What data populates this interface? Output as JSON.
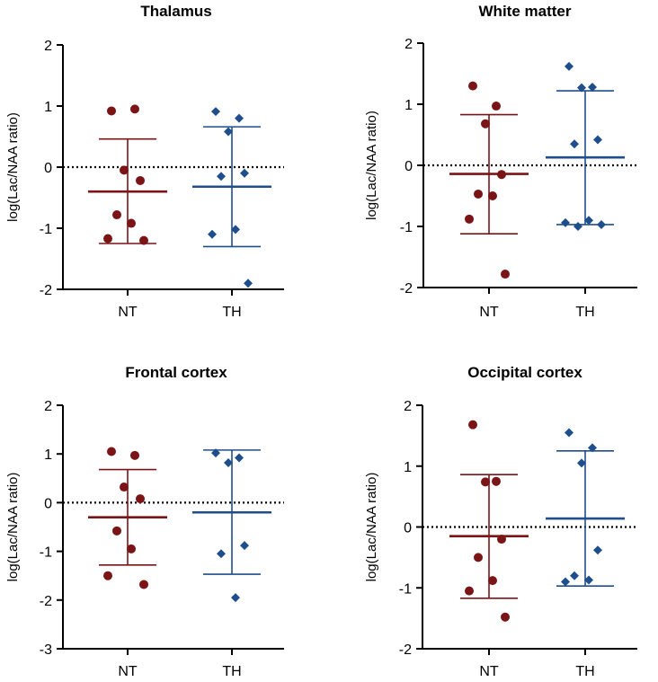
{
  "chart_data": [
    {
      "type": "scatter",
      "title": "Thalamus",
      "ylabel": "log(Lac/NAA ratio)",
      "xlabel": "",
      "categories": [
        "NT",
        "TH"
      ],
      "ylim": [
        -2,
        2
      ],
      "yticks": [
        2,
        1,
        0,
        -1,
        -2
      ],
      "ytick_labels": [
        "2",
        "1",
        "0",
        "-1",
        "-2"
      ],
      "reference_line": 0,
      "series": [
        {
          "name": "NT",
          "color": "#7b1416",
          "marker": "circle",
          "values": [
            0.92,
            0.95,
            -0.05,
            -0.22,
            -0.78,
            -0.92,
            -1.17,
            -1.2
          ],
          "mean": -0.4,
          "sd_low": -1.25,
          "sd_high": 0.46
        },
        {
          "name": "TH",
          "color": "#1f4e8c",
          "marker": "diamond",
          "values": [
            0.91,
            0.8,
            0.58,
            -0.1,
            -0.15,
            -1.02,
            -1.1,
            -1.9
          ],
          "mean": -0.32,
          "sd_low": -1.3,
          "sd_high": 0.66
        }
      ]
    },
    {
      "type": "scatter",
      "title": "White matter",
      "ylabel": "log(Lac/NAA ratio)",
      "xlabel": "",
      "categories": [
        "NT",
        "TH"
      ],
      "ylim": [
        -2,
        2
      ],
      "yticks": [
        2,
        1,
        0,
        -1,
        -2
      ],
      "ytick_labels": [
        "2",
        "1",
        "0",
        "-1",
        "-2"
      ],
      "reference_line": 0,
      "series": [
        {
          "name": "NT",
          "color": "#7b1416",
          "marker": "circle",
          "values": [
            1.3,
            0.97,
            0.68,
            -0.15,
            -0.47,
            -0.5,
            -0.88,
            -1.78
          ],
          "mean": -0.14,
          "sd_low": -1.12,
          "sd_high": 0.83
        },
        {
          "name": "TH",
          "color": "#1f4e8c",
          "marker": "diamond",
          "values": [
            1.62,
            1.28,
            1.27,
            0.42,
            0.35,
            -0.9,
            -0.94,
            -0.97,
            -1.0
          ],
          "mean": 0.13,
          "sd_low": -0.97,
          "sd_high": 1.22
        }
      ]
    },
    {
      "type": "scatter",
      "title": "Frontal cortex",
      "ylabel": "log(Lac/NAA ratio)",
      "xlabel": "",
      "categories": [
        "NT",
        "TH"
      ],
      "ylim": [
        -3,
        2
      ],
      "yticks": [
        2,
        1,
        0,
        -1,
        -2,
        -3
      ],
      "ytick_labels": [
        "2",
        "1",
        "0",
        "-1",
        "-2",
        "-3"
      ],
      "reference_line": 0,
      "series": [
        {
          "name": "NT",
          "color": "#7b1416",
          "marker": "circle",
          "values": [
            1.05,
            0.97,
            0.32,
            0.08,
            -0.58,
            -0.95,
            -1.5,
            -1.68
          ],
          "mean": -0.3,
          "sd_low": -1.28,
          "sd_high": 0.68
        },
        {
          "name": "TH",
          "color": "#1f4e8c",
          "marker": "diamond",
          "values": [
            1.02,
            0.92,
            0.82,
            -0.88,
            -1.05,
            -1.95
          ],
          "mean": -0.2,
          "sd_low": -1.47,
          "sd_high": 1.08
        }
      ]
    },
    {
      "type": "scatter",
      "title": "Occipital cortex",
      "ylabel": "log(Lac/NAA ratio)",
      "xlabel": "",
      "categories": [
        "NT",
        "TH"
      ],
      "ylim": [
        -2,
        2
      ],
      "yticks": [
        2,
        1,
        0,
        -1,
        -2
      ],
      "ytick_labels": [
        "2",
        "1",
        "0",
        "-1",
        "-2"
      ],
      "reference_line": 0,
      "series": [
        {
          "name": "NT",
          "color": "#7b1416",
          "marker": "circle",
          "values": [
            1.68,
            0.75,
            0.74,
            -0.2,
            -0.5,
            -0.88,
            -1.05,
            -1.48
          ],
          "mean": -0.15,
          "sd_low": -1.17,
          "sd_high": 0.86
        },
        {
          "name": "TH",
          "color": "#1f4e8c",
          "marker": "diamond",
          "values": [
            1.55,
            1.3,
            1.05,
            -0.38,
            -0.8,
            -0.87,
            -0.9
          ],
          "mean": 0.14,
          "sd_low": -0.97,
          "sd_high": 1.25
        }
      ]
    }
  ]
}
